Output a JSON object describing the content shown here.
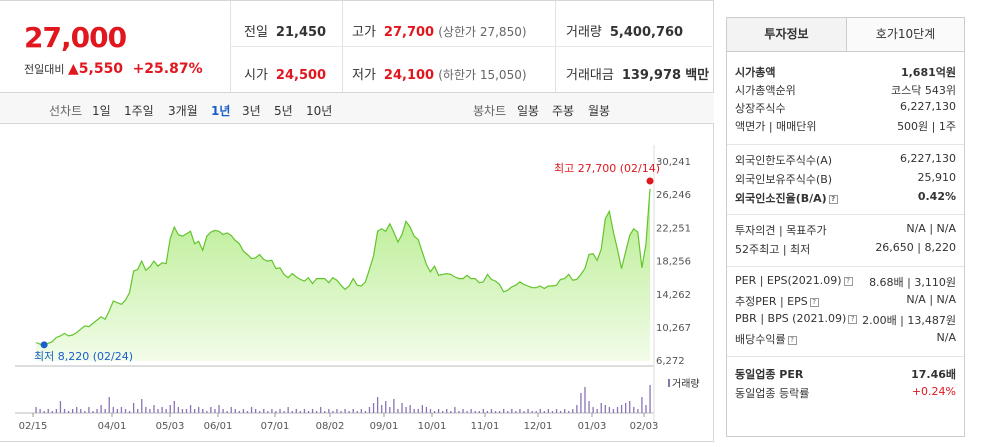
{
  "quote": {
    "price": "27,000",
    "change_label": "전일대비",
    "change_arrow": "▲",
    "change_value": "5,550",
    "change_pct": "+25.87%",
    "prev_label": "전일",
    "prev_value": "21,450",
    "high_label": "고가",
    "high_value": "27,700",
    "upper_limit": "(상한가 27,850)",
    "volume_label": "거래량",
    "volume_value": "5,400,760",
    "open_label": "시가",
    "open_value": "24,500",
    "low_label": "저가",
    "low_value": "24,100",
    "lower_limit": "(하한가 15,050)",
    "amount_label": "거래대금",
    "amount_value": "139,978",
    "amount_unit": "백만"
  },
  "periods": {
    "line_label": "선차트",
    "items": [
      "1일",
      "1주일",
      "3개월",
      "1년",
      "3년",
      "5년",
      "10년"
    ],
    "selected": "1년",
    "candle_label": "봉차트",
    "candle_items": [
      "일봉",
      "주봉",
      "월봉"
    ]
  },
  "chart_data": {
    "type": "area",
    "ylim": [
      6272,
      30241
    ],
    "y_ticks": [
      "30,241",
      "26,246",
      "22,251",
      "18,256",
      "14,262",
      "10,267",
      "6,272"
    ],
    "x_ticks": [
      "02/15",
      "04/01",
      "05/03",
      "06/01",
      "07/01",
      "08/02",
      "09/01",
      "10/01",
      "11/01",
      "12/01",
      "01/03",
      "02/03"
    ],
    "max_label": "최고 27,700 (02/14)",
    "min_label": "최저 8,220 (02/24)",
    "volume_label": "거래량",
    "series": [
      {
        "values": [
          8500,
          8300,
          8220,
          8400,
          8600,
          9100,
          9300,
          9600,
          9300,
          9400,
          9700,
          10100,
          10500,
          10400,
          10800,
          11200,
          11600,
          11300,
          12300,
          13500,
          13300,
          13100,
          13600,
          14500,
          17100,
          17300,
          18300,
          17200,
          17600,
          18300,
          17700,
          18100,
          18000,
          21000,
          22400,
          21500,
          21300,
          21600,
          21900,
          20400,
          20700,
          19600,
          21300,
          21800,
          22000,
          21900,
          21500,
          21700,
          21400,
          20800,
          20400,
          19500,
          19100,
          18600,
          18700,
          19100,
          18500,
          18300,
          18400,
          17400,
          17500,
          16700,
          16300,
          16800,
          16400,
          16100,
          15900,
          16300,
          15600,
          16200,
          16200,
          16200,
          15700,
          16300,
          16000,
          15400,
          14900,
          15300,
          16200,
          15400,
          15300,
          15800,
          17300,
          18900,
          21900,
          22200,
          21900,
          22800,
          21800,
          20600,
          21500,
          23100,
          22400,
          21300,
          20900,
          19400,
          17900,
          17000,
          17700,
          16600,
          16700,
          16800,
          16700,
          16400,
          16200,
          16200,
          16600,
          16200,
          16200,
          15700,
          15800,
          16700,
          16100,
          15900,
          15500,
          14600,
          14800,
          15200,
          15400,
          15800,
          15500,
          15300,
          15100,
          15100,
          15300,
          15000,
          15300,
          15300,
          15400,
          16100,
          16200,
          16700,
          16000,
          16100,
          16700,
          17400,
          19100,
          19200,
          18400,
          19700,
          23400,
          24300,
          21800,
          19700,
          17400,
          19400,
          21400,
          22200,
          21800,
          17500,
          20300,
          27000
        ]
      },
      {
        "name": "거래량",
        "values": [
          3,
          2,
          1,
          2,
          1,
          2,
          6,
          2,
          1,
          2,
          3,
          2,
          1,
          3,
          1,
          2,
          4,
          2,
          8,
          3,
          2,
          3,
          2,
          1,
          5,
          2,
          7,
          3,
          2,
          4,
          2,
          3,
          2,
          4,
          6,
          3,
          2,
          2,
          4,
          2,
          3,
          2,
          1,
          3,
          2,
          4,
          2,
          1,
          3,
          2,
          1,
          2,
          1,
          3,
          2,
          1,
          2,
          1,
          2,
          1,
          2,
          1,
          3,
          1,
          2,
          1,
          2,
          1,
          2,
          1,
          3,
          1,
          2,
          1,
          2,
          1,
          2,
          1,
          2,
          1,
          2,
          1,
          3,
          5,
          8,
          4,
          6,
          3,
          7,
          2,
          5,
          3,
          4,
          2,
          2,
          4,
          3,
          2,
          1,
          2,
          1,
          2,
          1,
          3,
          1,
          2,
          1,
          2,
          1,
          1,
          2,
          1,
          2,
          1,
          1,
          2,
          1,
          2,
          1,
          2,
          1,
          2,
          1,
          1,
          2,
          1,
          2,
          1,
          2,
          1,
          2,
          1,
          2,
          4,
          10,
          13,
          6,
          3,
          2,
          5,
          4,
          3,
          2,
          3,
          4,
          5,
          6,
          3,
          2,
          8,
          4,
          14
        ]
      }
    ]
  },
  "side": {
    "tab_invest": "투자정보",
    "tab_quote": "호가10단계",
    "mcap_label": "시가총액",
    "mcap_value": "1,681억원",
    "mcap_rank_label": "시가총액순위",
    "mcap_rank_value": "코스닥 543위",
    "shares_label": "상장주식수",
    "shares_value": "6,227,130",
    "par_label": "액면가 | 매매단위",
    "par_value": "500원 | 1주",
    "foreign_limit_label": "외국인한도주식수(A)",
    "foreign_limit_value": "6,227,130",
    "foreign_hold_label": "외국인보유주식수(B)",
    "foreign_hold_value": "25,910",
    "foreign_ratio_label": "외국인소진율(B/A)",
    "foreign_ratio_value": "0.42%",
    "opinion_label": "투자의견 | 목표주가",
    "opinion_value": "N/A | N/A",
    "w52_label": "52주최고 | 최저",
    "w52_value": "26,650 | 8,220",
    "per_label": "PER | EPS(2021.09)",
    "per_value": "8.68배 | 3,110원",
    "eper_label": "추정PER | EPS",
    "eper_value": "N/A | N/A",
    "pbr_label": "PBR | BPS (2021.09)",
    "pbr_value": "2.00배 | 13,487원",
    "div_label": "배당수익률",
    "div_value": "N/A",
    "ind_per_label": "동일업종 PER",
    "ind_per_value": "17.46배",
    "ind_rate_label": "동일업종 등락률",
    "ind_rate_value": "+0.24%"
  }
}
